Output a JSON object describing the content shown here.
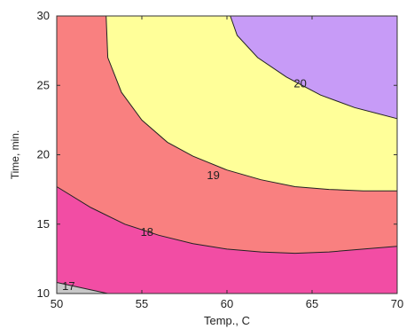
{
  "chart_data": {
    "type": "heatmap",
    "subtype": "filled-contour",
    "title": "",
    "xlabel": "Temp., C",
    "ylabel": "Time, min.",
    "xlim": [
      50,
      70
    ],
    "ylim": [
      10,
      30
    ],
    "xticks": [
      50,
      55,
      60,
      65,
      70
    ],
    "yticks": [
      10,
      15,
      20,
      25,
      30
    ],
    "grid": false,
    "regions": [
      {
        "range": "< 17",
        "color": "#c8c8c8"
      },
      {
        "range": "17–18",
        "color": "#f24da4"
      },
      {
        "range": "18–19",
        "color": "#f98080"
      },
      {
        "range": "19–20",
        "color": "#ffff99"
      },
      {
        "range": "> 20",
        "color": "#c79bf7"
      }
    ],
    "contours": [
      {
        "label": "17",
        "level": 17,
        "points": [
          [
            50,
            10.8
          ],
          [
            51.5,
            10.4
          ],
          [
            53,
            10.0
          ]
        ],
        "label_at": [
          50.7,
          10.5
        ]
      },
      {
        "label": "18",
        "level": 18,
        "points": [
          [
            50,
            17.7
          ],
          [
            52,
            16.2
          ],
          [
            54,
            15.0
          ],
          [
            56,
            14.2
          ],
          [
            58,
            13.6
          ],
          [
            60,
            13.2
          ],
          [
            62,
            13.0
          ],
          [
            64,
            12.9
          ],
          [
            66,
            13.0
          ],
          [
            68,
            13.2
          ],
          [
            70,
            13.4
          ]
        ],
        "label_at": [
          55.3,
          14.4
        ]
      },
      {
        "label": "19",
        "level": 19,
        "points": [
          [
            52.9,
            30
          ],
          [
            53,
            27
          ],
          [
            53.8,
            24.5
          ],
          [
            55,
            22.5
          ],
          [
            56.5,
            20.9
          ],
          [
            58,
            19.9
          ],
          [
            60,
            18.9
          ],
          [
            62,
            18.2
          ],
          [
            64,
            17.7
          ],
          [
            66,
            17.5
          ],
          [
            68,
            17.4
          ],
          [
            70,
            17.4
          ]
        ],
        "label_at": [
          59.2,
          18.5
        ]
      },
      {
        "label": "20",
        "level": 20,
        "points": [
          [
            60.2,
            30
          ],
          [
            60.6,
            28.6
          ],
          [
            61.8,
            27.0
          ],
          [
            63.5,
            25.6
          ],
          [
            65.5,
            24.3
          ],
          [
            67.5,
            23.4
          ],
          [
            70,
            22.6
          ]
        ],
        "label_at": [
          64.3,
          25.1
        ]
      }
    ]
  }
}
